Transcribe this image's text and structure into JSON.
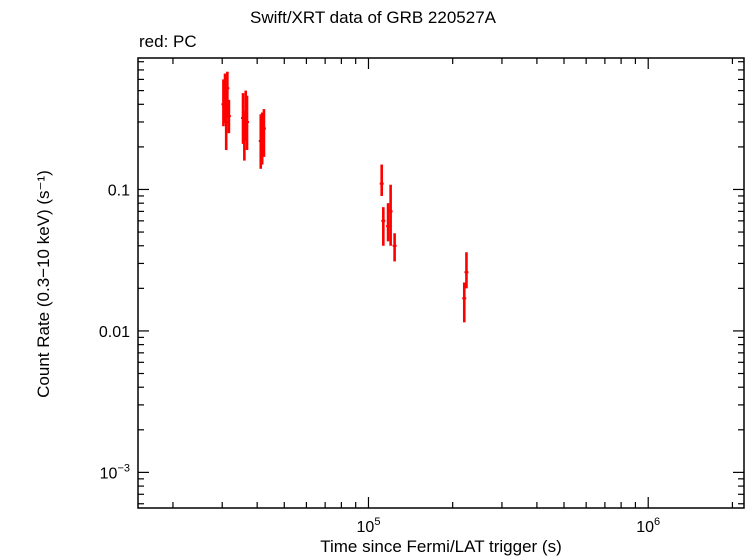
{
  "chart_data": {
    "type": "scatter",
    "title": "Swift/XRT data of GRB 220527A",
    "subtitle": "red: PC",
    "xlabel": "Time since Fermi/LAT trigger (s)",
    "ylabel": "Count Rate (0.3−10 keV) (s⁻¹)",
    "xscale": "log",
    "yscale": "log",
    "xlim": [
      15000,
      2200000
    ],
    "ylim": [
      0.00056,
      0.85
    ],
    "x_ticks": [
      {
        "value": 100000,
        "base": "10",
        "exp": "5"
      },
      {
        "value": 1000000,
        "base": "10",
        "exp": "6"
      }
    ],
    "y_ticks": [
      {
        "value": 0.1,
        "label": "0.1"
      },
      {
        "value": 0.01,
        "label": "0.01"
      },
      {
        "value": 0.001,
        "base": "10",
        "exp": "−3"
      }
    ],
    "grid": false,
    "color": "#ff0000",
    "series": [
      {
        "points": [
          {
            "x": 30300,
            "y": 0.4,
            "ylo": 0.28,
            "yhi": 0.6
          },
          {
            "x": 30700,
            "y": 0.48,
            "ylo": 0.3,
            "yhi": 0.66
          },
          {
            "x": 31000,
            "y": 0.3,
            "ylo": 0.19,
            "yhi": 0.5
          },
          {
            "x": 31300,
            "y": 0.52,
            "ylo": 0.32,
            "yhi": 0.68
          },
          {
            "x": 31700,
            "y": 0.33,
            "ylo": 0.25,
            "yhi": 0.43
          },
          {
            "x": 35600,
            "y": 0.32,
            "ylo": 0.21,
            "yhi": 0.48
          },
          {
            "x": 36000,
            "y": 0.24,
            "ylo": 0.16,
            "yhi": 0.36
          },
          {
            "x": 36400,
            "y": 0.35,
            "ylo": 0.22,
            "yhi": 0.5
          },
          {
            "x": 36800,
            "y": 0.3,
            "ylo": 0.19,
            "yhi": 0.46
          },
          {
            "x": 41200,
            "y": 0.22,
            "ylo": 0.14,
            "yhi": 0.34
          },
          {
            "x": 41700,
            "y": 0.24,
            "ylo": 0.15,
            "yhi": 0.35
          },
          {
            "x": 42300,
            "y": 0.27,
            "ylo": 0.17,
            "yhi": 0.37
          },
          {
            "x": 111500,
            "y": 0.11,
            "ylo": 0.09,
            "yhi": 0.15
          },
          {
            "x": 113000,
            "y": 0.06,
            "ylo": 0.04,
            "yhi": 0.075
          },
          {
            "x": 117500,
            "y": 0.055,
            "ylo": 0.043,
            "yhi": 0.08
          },
          {
            "x": 120000,
            "y": 0.07,
            "ylo": 0.04,
            "yhi": 0.108
          },
          {
            "x": 124000,
            "y": 0.04,
            "ylo": 0.031,
            "yhi": 0.049
          },
          {
            "x": 220000,
            "y": 0.017,
            "ylo": 0.0115,
            "yhi": 0.022
          },
          {
            "x": 224000,
            "y": 0.026,
            "ylo": 0.02,
            "yhi": 0.036
          }
        ]
      }
    ]
  }
}
